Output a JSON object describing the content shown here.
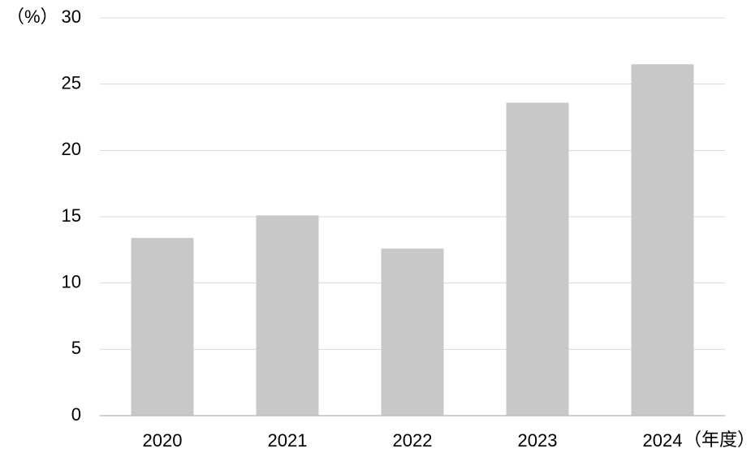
{
  "chart_data": {
    "type": "bar",
    "ylabel": "（%）",
    "xlabel": "（年度）",
    "categories": [
      "2020",
      "2021",
      "2022",
      "2023",
      "2024"
    ],
    "values": [
      13.4,
      15.1,
      12.6,
      23.6,
      26.5
    ],
    "color": "#c8c8c8",
    "ylim": [
      0,
      30
    ],
    "yticks": [
      0,
      5,
      10,
      15,
      20,
      25,
      30
    ],
    "grid": true
  }
}
